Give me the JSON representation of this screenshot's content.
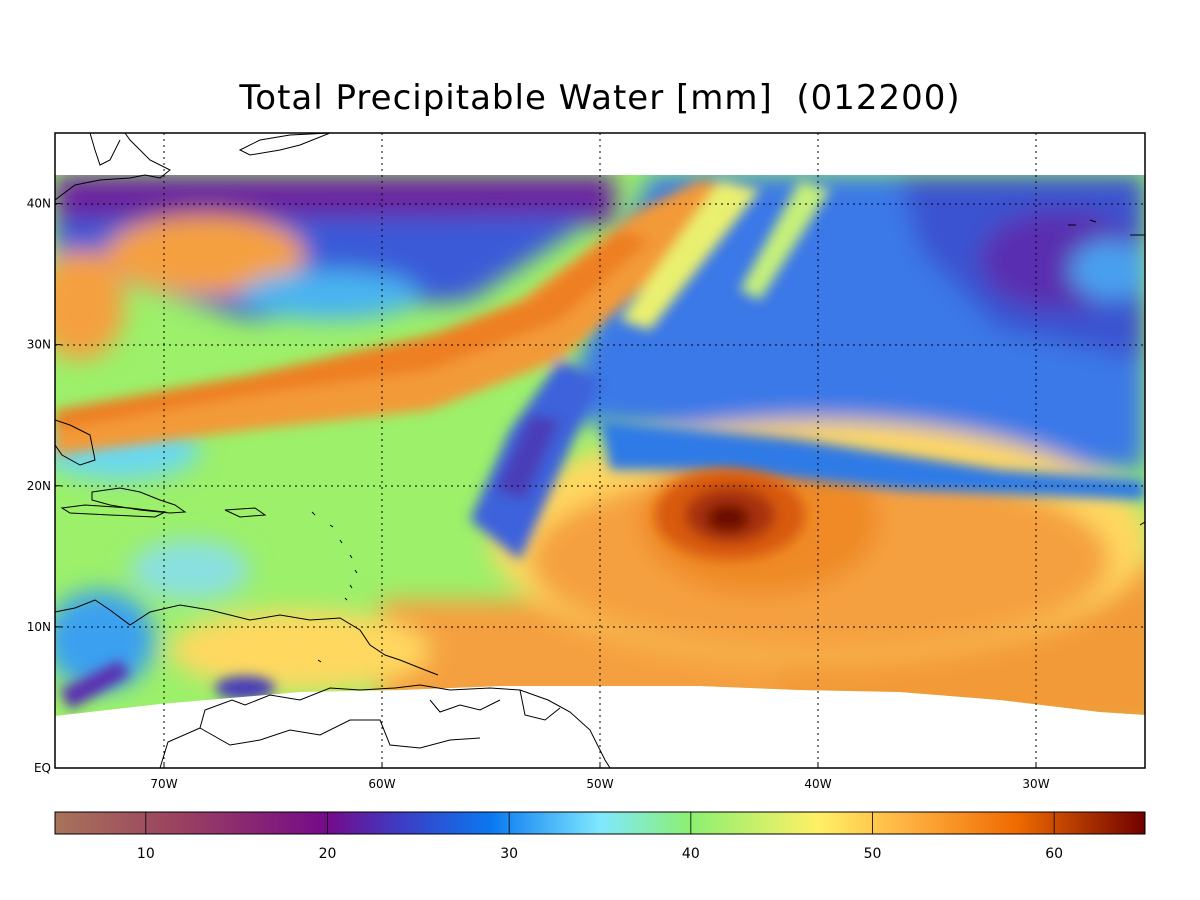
{
  "title": "Total Precipitable Water [mm]  (012200)",
  "map": {
    "lon_range": [
      -75,
      -25
    ],
    "lat_range": [
      0,
      45
    ],
    "data_lat_max": 42,
    "gridlines": "dotted",
    "x_ticks": [
      {
        "value": -70,
        "label": "70W"
      },
      {
        "value": -60,
        "label": "60W"
      },
      {
        "value": -50,
        "label": "50W"
      },
      {
        "value": -40,
        "label": "40W"
      },
      {
        "value": -30,
        "label": "30W"
      }
    ],
    "y_ticks": [
      {
        "value": 0,
        "label": "EQ"
      },
      {
        "value": 10,
        "label": "10N"
      },
      {
        "value": 20,
        "label": "20N"
      },
      {
        "value": 30,
        "label": "30N"
      },
      {
        "value": 40,
        "label": "40N"
      }
    ],
    "features": [
      {
        "name": "hurricane-center",
        "lon": -44,
        "lat": 17.5,
        "value": 65
      },
      {
        "name": "dry-air-north",
        "lon": -63,
        "lat": 40.5,
        "value": 20
      }
    ]
  },
  "colorbar": {
    "range": [
      5,
      65
    ],
    "ticks": [
      {
        "value": 10,
        "label": "10"
      },
      {
        "value": 20,
        "label": "20"
      },
      {
        "value": 30,
        "label": "30"
      },
      {
        "value": 40,
        "label": "40"
      },
      {
        "value": 50,
        "label": "50"
      },
      {
        "value": 60,
        "label": "60"
      }
    ],
    "stops": [
      {
        "value": 5,
        "color": "#a8735a"
      },
      {
        "value": 12,
        "color": "#9a4060"
      },
      {
        "value": 20,
        "color": "#740a8a"
      },
      {
        "value": 24,
        "color": "#3d3cc4"
      },
      {
        "value": 29,
        "color": "#0a78f0"
      },
      {
        "value": 35,
        "color": "#7fe8ff"
      },
      {
        "value": 40,
        "color": "#8cf070"
      },
      {
        "value": 47,
        "color": "#fff066"
      },
      {
        "value": 52,
        "color": "#ffb040"
      },
      {
        "value": 58,
        "color": "#ee6a00"
      },
      {
        "value": 65,
        "color": "#700000"
      }
    ]
  }
}
